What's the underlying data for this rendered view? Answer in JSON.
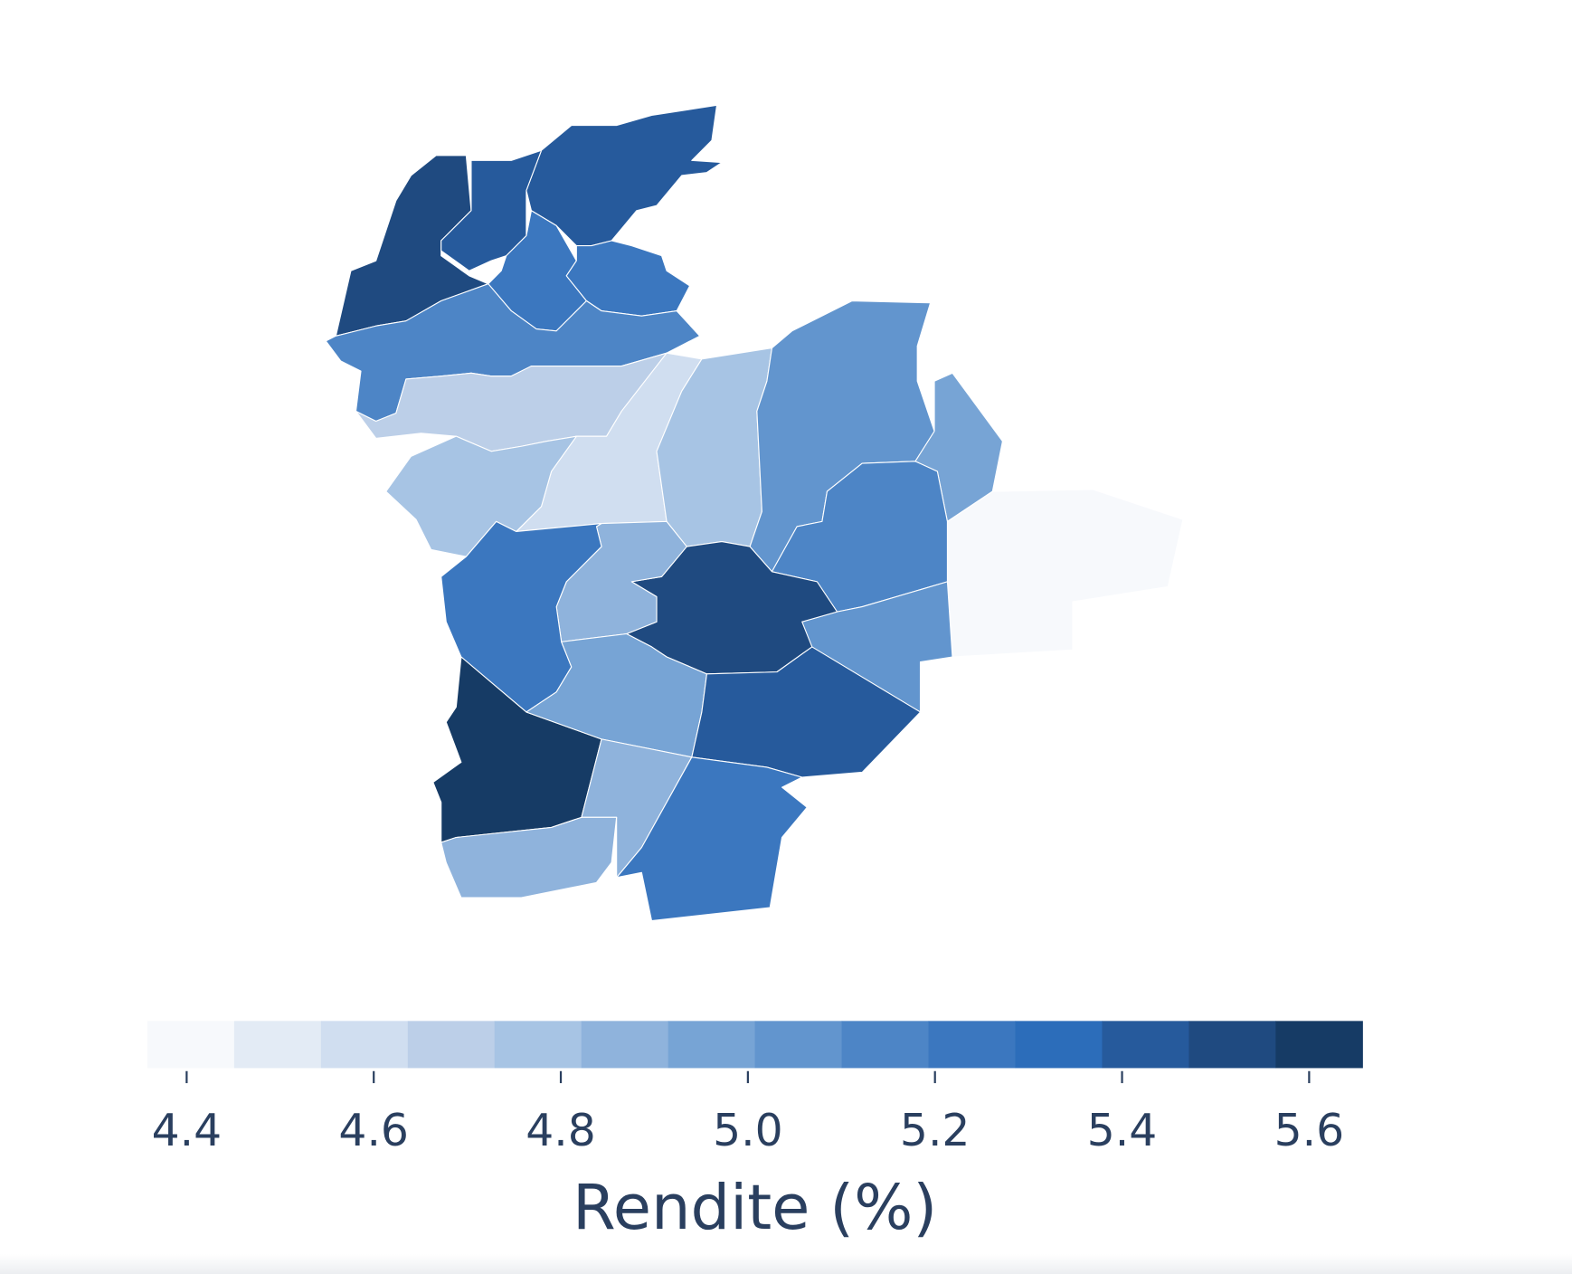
{
  "chart_data": {
    "type": "choropleth",
    "values": [
      5.52,
      5.42,
      5.42,
      5.24,
      5.24,
      5.15,
      4.68,
      4.59,
      4.78,
      4.78,
      5.05,
      4.96,
      4.4,
      5.15,
      5.05,
      5.52,
      4.87,
      5.24,
      5.61,
      4.96,
      5.42,
      4.87,
      5.24,
      4.87
    ],
    "colors": [
      "#f7f9fc",
      "#e3ebf5",
      "#d0def0",
      "#bccfe8",
      "#a7c4e4",
      "#8fb3dc",
      "#77a4d5",
      "#6295ce",
      "#4d85c6",
      "#3b77bf",
      "#2c6dba",
      "#265a9c",
      "#1f4a80",
      "#163b65"
    ],
    "colorbar_lim": [
      4.358,
      5.657
    ],
    "colorbar_ticks": [
      4.4,
      4.6,
      4.8,
      {
        "value": 5,
        "label": "5.0"
      },
      5.2,
      5.4,
      5.6
    ],
    "colorbar_title": "Rendite (%)"
  }
}
